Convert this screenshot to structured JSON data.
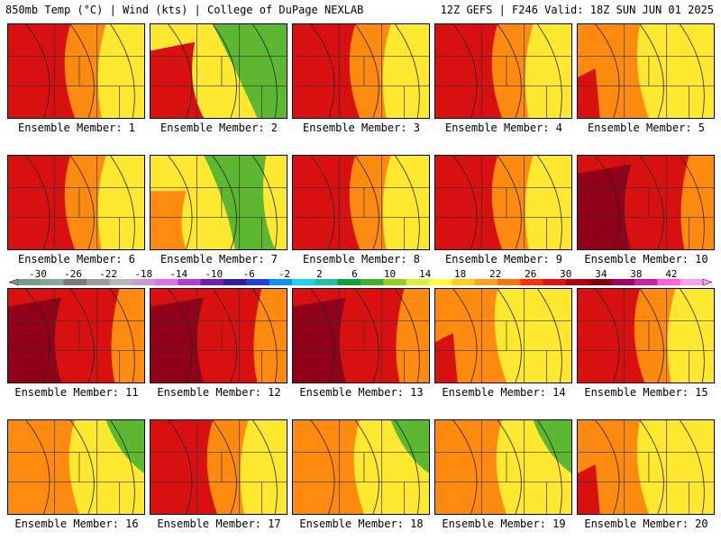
{
  "header": {
    "left": "850mb Temp (°C) | Wind (kts) | College of DuPage NEXLAB",
    "right": "12Z GEFS | F246 Valid: 18Z SUN JUN 01 2025"
  },
  "panels": [
    {
      "label": "Ensemble Member: 1",
      "tone": "hot-west"
    },
    {
      "label": "Ensemble Member: 2",
      "tone": "green-ne"
    },
    {
      "label": "Ensemble Member: 3",
      "tone": "hot-west"
    },
    {
      "label": "Ensemble Member: 4",
      "tone": "hot-west"
    },
    {
      "label": "Ensemble Member: 5",
      "tone": "mild"
    },
    {
      "label": "Ensemble Member: 6",
      "tone": "hot-west"
    },
    {
      "label": "Ensemble Member: 7",
      "tone": "green-center"
    },
    {
      "label": "Ensemble Member: 8",
      "tone": "hot-west"
    },
    {
      "label": "Ensemble Member: 9",
      "tone": "hot-west"
    },
    {
      "label": "Ensemble Member: 10",
      "tone": "very-hot"
    },
    {
      "label": "Ensemble Member: 11",
      "tone": "very-hot"
    },
    {
      "label": "Ensemble Member: 12",
      "tone": "very-hot"
    },
    {
      "label": "Ensemble Member: 13",
      "tone": "very-hot"
    },
    {
      "label": "Ensemble Member: 14",
      "tone": "mild"
    },
    {
      "label": "Ensemble Member: 15",
      "tone": "hot-west"
    },
    {
      "label": "Ensemble Member: 16",
      "tone": "mild-green"
    },
    {
      "label": "Ensemble Member: 17",
      "tone": "hot-west"
    },
    {
      "label": "Ensemble Member: 18",
      "tone": "mild-green"
    },
    {
      "label": "Ensemble Member: 19",
      "tone": "mild-green"
    },
    {
      "label": "Ensemble Member: 20",
      "tone": "mild"
    }
  ],
  "colorbar": {
    "ticks": [
      "-30",
      "-26",
      "-22",
      "-18",
      "-14",
      "-10",
      "-6",
      "-2",
      "2",
      "6",
      "10",
      "14",
      "18",
      "22",
      "26",
      "30",
      "34",
      "38",
      "42"
    ],
    "colors": [
      "#7c9a8a",
      "#8aa898",
      "#7a7a7a",
      "#9a9a9a",
      "#b8b8b8",
      "#c89ad8",
      "#e070e8",
      "#b040c8",
      "#7020b0",
      "#3020a0",
      "#2040d8",
      "#1090f0",
      "#20d0f0",
      "#20c0a0",
      "#10a040",
      "#40b030",
      "#90d020",
      "#d8f040",
      "#ffff40",
      "#ffd020",
      "#ffa020",
      "#ff7010",
      "#ff3010",
      "#e01010",
      "#b00010",
      "#800010",
      "#a00060",
      "#d020a0",
      "#ff60e0",
      "#ffa0f0"
    ]
  },
  "colors": {
    "hot": "#d81010",
    "warm": "#ff8a10",
    "yellow": "#ffe830",
    "green": "#5cb830",
    "darkred": "#900018"
  }
}
